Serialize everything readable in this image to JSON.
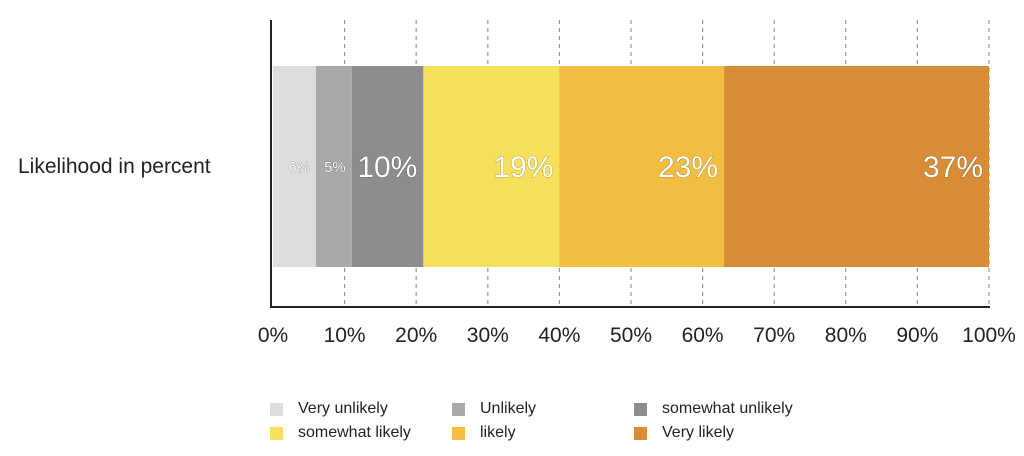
{
  "chart_data": {
    "type": "bar",
    "orientation": "horizontal",
    "stacked": true,
    "categories": [
      "Likelihood in percent"
    ],
    "series": [
      {
        "name": "Very unlikely",
        "values": [
          6
        ],
        "label": "6%",
        "color": "#dcdddf"
      },
      {
        "name": "Unlikely",
        "values": [
          5
        ],
        "label": "5%",
        "color": "#a8a9a9"
      },
      {
        "name": "somewhat unlikely",
        "values": [
          10
        ],
        "label": "10%",
        "color": "#8d8d8d"
      },
      {
        "name": "somewhat likely",
        "values": [
          19
        ],
        "label": "19%",
        "color": "#f6df5a"
      },
      {
        "name": "likely",
        "values": [
          23
        ],
        "label": "23%",
        "color": "#f3bd42"
      },
      {
        "name": "Very likely",
        "values": [
          37
        ],
        "label": "37%",
        "color": "#d88c36"
      }
    ],
    "xlim": [
      0,
      100
    ],
    "xticks": [
      "0%",
      "10%",
      "20%",
      "30%",
      "40%",
      "50%",
      "60%",
      "70%",
      "80%",
      "90%",
      "100%"
    ],
    "grid": "vertical dashed",
    "legend_position": "bottom"
  }
}
